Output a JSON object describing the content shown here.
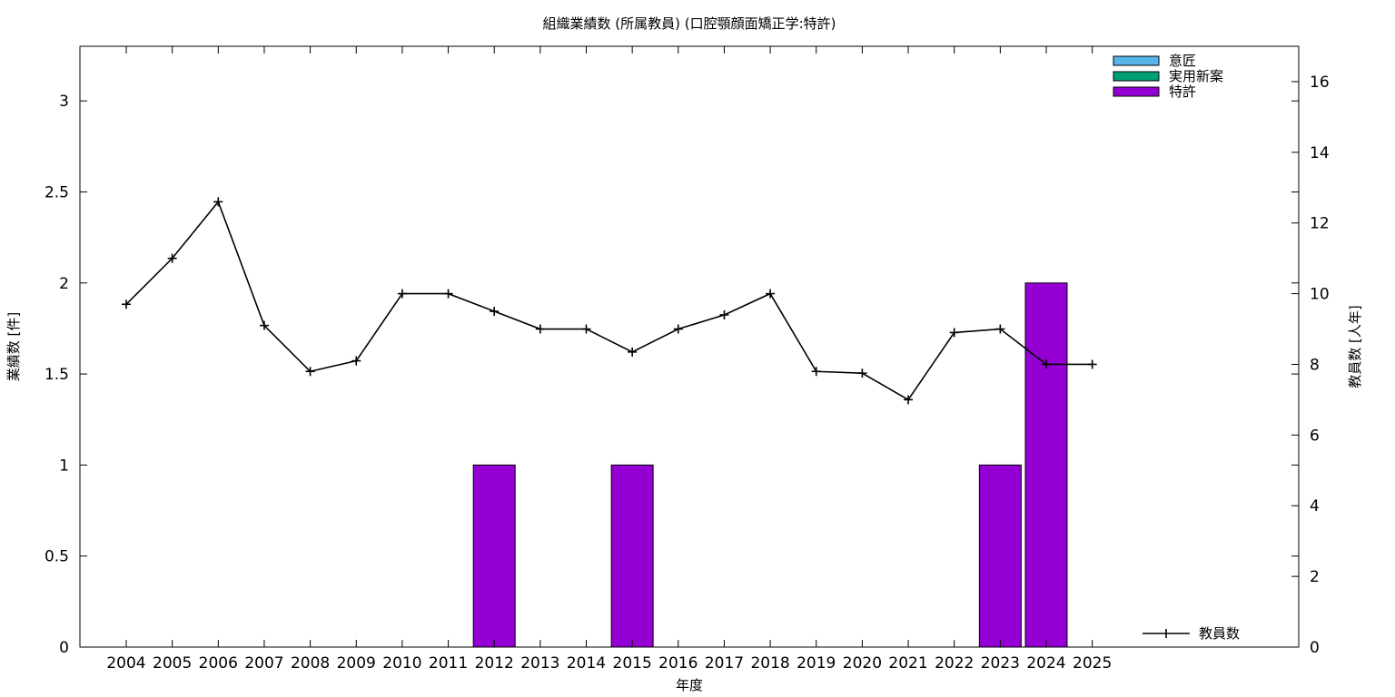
{
  "chart_data": {
    "type": "bar",
    "title": "組織業績数 (所属教員) (口腔顎顔面矯正学:特許)",
    "xlabel": "年度",
    "ylabel": "業績数 [件]",
    "y2label": "教員数 [人年]",
    "categories": [
      "2004",
      "2005",
      "2006",
      "2007",
      "2008",
      "2009",
      "2010",
      "2011",
      "2012",
      "2013",
      "2014",
      "2015",
      "2016",
      "2017",
      "2018",
      "2019",
      "2020",
      "2021",
      "2022",
      "2023",
      "2024",
      "2025"
    ],
    "ylim": [
      0,
      3.3
    ],
    "y2lim": [
      0,
      17
    ],
    "yticks": [
      0,
      0.5,
      1,
      1.5,
      2,
      2.5,
      3
    ],
    "yticklabels": [
      "0",
      "0.5",
      "1",
      "1.5",
      "2",
      "2.5",
      "3"
    ],
    "y2ticks": [
      0,
      2,
      4,
      6,
      8,
      10,
      12,
      14,
      16
    ],
    "y2ticklabels": [
      "0",
      "2",
      "4",
      "6",
      "8",
      "10",
      "12",
      "14",
      "16"
    ],
    "grid": false,
    "series": [
      {
        "name": "意匠",
        "color": "#56b4e9",
        "axis": "y",
        "kind": "bar",
        "values": [
          0,
          0,
          0,
          0,
          0,
          0,
          0,
          0,
          0,
          0,
          0,
          0,
          0,
          0,
          0,
          0,
          0,
          0,
          0,
          0,
          0,
          0
        ]
      },
      {
        "name": "実用新案",
        "color": "#009e73",
        "axis": "y",
        "kind": "bar",
        "values": [
          0,
          0,
          0,
          0,
          0,
          0,
          0,
          0,
          0,
          0,
          0,
          0,
          0,
          0,
          0,
          0,
          0,
          0,
          0,
          0,
          0,
          0
        ]
      },
      {
        "name": "特許",
        "color": "#9400d3",
        "axis": "y",
        "kind": "bar",
        "values": [
          0,
          0,
          0,
          0,
          0,
          0,
          0,
          0,
          1,
          0,
          0,
          1,
          0,
          0,
          0,
          0,
          0,
          0,
          0,
          1,
          2,
          0
        ]
      },
      {
        "name": "教員数",
        "color": "#000000",
        "axis": "y2",
        "kind": "line",
        "marker": "plus",
        "values": [
          9.7,
          11.0,
          12.6,
          9.1,
          7.8,
          8.1,
          10.0,
          10.0,
          9.5,
          9.0,
          9.0,
          8.35,
          9.0,
          9.4,
          10.0,
          7.8,
          7.75,
          7.0,
          8.9,
          9.0,
          8.0,
          8.0
        ]
      }
    ],
    "legend_top": "top-right",
    "legend_bottom": "bottom-right"
  }
}
